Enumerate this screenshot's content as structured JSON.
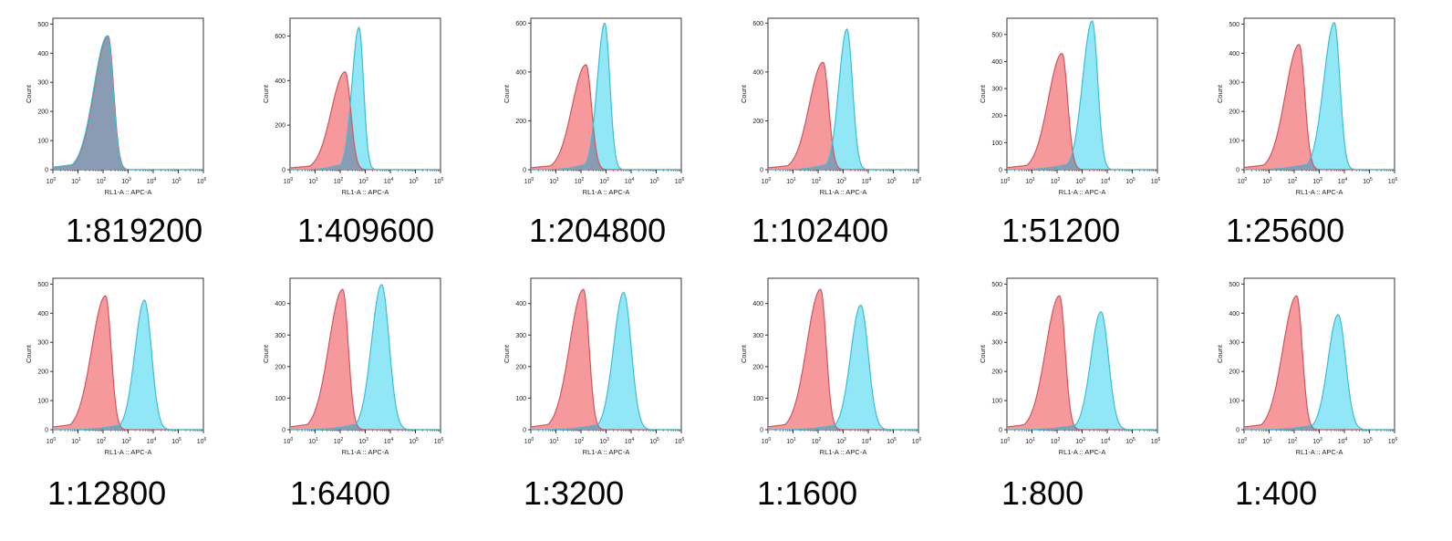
{
  "figure": {
    "xlabel": "RL1-A :: APC-A",
    "ylabel": "Count",
    "x_tick_labels": [
      "10^0",
      "10^1",
      "10^2",
      "10^3",
      "10^4",
      "10^5",
      "10^6"
    ],
    "colors": {
      "control": "#f4878b",
      "control_stroke": "#d9515a",
      "sample": "#7fe3f5",
      "sample_stroke": "#38bfd8",
      "overlap": "#8a96ad"
    }
  },
  "chart_data": [
    {
      "type": "area",
      "caption": "1:819200",
      "xscale": "log",
      "xlim": [
        1,
        1000000
      ],
      "ylim": [
        0,
        520
      ],
      "yticks": [
        0,
        100,
        200,
        300,
        400,
        500
      ],
      "xlabel": "RL1-A :: APC-A",
      "ylabel": "Count",
      "series": [
        {
          "peak_log10": 2.2,
          "height": 460,
          "width_left": 0.55,
          "width_right": 0.22
        },
        {
          "peak_log10": 2.18,
          "height": 460,
          "width_left": 0.55,
          "width_right": 0.22
        }
      ]
    },
    {
      "type": "area",
      "caption": "1:409600",
      "xscale": "log",
      "xlim": [
        1,
        1000000
      ],
      "ylim": [
        0,
        680
      ],
      "yticks": [
        0,
        200,
        400,
        600
      ],
      "xlabel": "RL1-A :: APC-A",
      "ylabel": "Count",
      "series": [
        {
          "peak_log10": 2.2,
          "height": 440,
          "width_left": 0.55,
          "width_right": 0.22
        },
        {
          "peak_log10": 2.75,
          "height": 640,
          "width_left": 0.28,
          "width_right": 0.18
        }
      ]
    },
    {
      "type": "area",
      "caption": "1:204800",
      "xscale": "log",
      "xlim": [
        1,
        1000000
      ],
      "ylim": [
        0,
        620
      ],
      "yticks": [
        0,
        200,
        400,
        600
      ],
      "xlabel": "RL1-A :: APC-A",
      "ylabel": "Count",
      "series": [
        {
          "peak_log10": 2.2,
          "height": 430,
          "width_left": 0.55,
          "width_right": 0.22
        },
        {
          "peak_log10": 2.95,
          "height": 600,
          "width_left": 0.3,
          "width_right": 0.2
        }
      ]
    },
    {
      "type": "area",
      "caption": "1:102400",
      "xscale": "log",
      "xlim": [
        1,
        1000000
      ],
      "ylim": [
        0,
        620
      ],
      "yticks": [
        0,
        200,
        400,
        600
      ],
      "xlabel": "RL1-A :: APC-A",
      "ylabel": "Count",
      "series": [
        {
          "peak_log10": 2.2,
          "height": 440,
          "width_left": 0.55,
          "width_right": 0.22
        },
        {
          "peak_log10": 3.15,
          "height": 575,
          "width_left": 0.32,
          "width_right": 0.22
        }
      ]
    },
    {
      "type": "area",
      "caption": "1:51200",
      "xscale": "log",
      "xlim": [
        1,
        1000000
      ],
      "ylim": [
        0,
        560
      ],
      "yticks": [
        0,
        100,
        200,
        300,
        400,
        500
      ],
      "xlabel": "RL1-A :: APC-A",
      "ylabel": "Count",
      "series": [
        {
          "peak_log10": 2.2,
          "height": 430,
          "width_left": 0.55,
          "width_right": 0.22
        },
        {
          "peak_log10": 3.4,
          "height": 550,
          "width_left": 0.38,
          "width_right": 0.22
        }
      ]
    },
    {
      "type": "area",
      "caption": "1:25600",
      "xscale": "log",
      "xlim": [
        1,
        1000000
      ],
      "ylim": [
        0,
        520
      ],
      "yticks": [
        0,
        100,
        200,
        300,
        400,
        500
      ],
      "xlabel": "RL1-A :: APC-A",
      "ylabel": "Count",
      "series": [
        {
          "peak_log10": 2.2,
          "height": 430,
          "width_left": 0.55,
          "width_right": 0.22
        },
        {
          "peak_log10": 3.6,
          "height": 505,
          "width_left": 0.42,
          "width_right": 0.22
        }
      ]
    },
    {
      "type": "area",
      "caption": "1:12800",
      "xscale": "log",
      "xlim": [
        1,
        1000000
      ],
      "ylim": [
        0,
        520
      ],
      "yticks": [
        0,
        100,
        200,
        300,
        400,
        500
      ],
      "xlabel": "RL1-A :: APC-A",
      "ylabel": "Count",
      "series": [
        {
          "peak_log10": 2.1,
          "height": 460,
          "width_left": 0.55,
          "width_right": 0.22
        },
        {
          "peak_log10": 3.65,
          "height": 445,
          "width_left": 0.38,
          "width_right": 0.28
        }
      ]
    },
    {
      "type": "area",
      "caption": "1:6400",
      "xscale": "log",
      "xlim": [
        1,
        1000000
      ],
      "ylim": [
        0,
        480
      ],
      "yticks": [
        0,
        100,
        200,
        300,
        400
      ],
      "xlabel": "RL1-A :: APC-A",
      "ylabel": "Count",
      "series": [
        {
          "peak_log10": 2.1,
          "height": 445,
          "width_left": 0.55,
          "width_right": 0.22
        },
        {
          "peak_log10": 3.65,
          "height": 460,
          "width_left": 0.4,
          "width_right": 0.3
        }
      ]
    },
    {
      "type": "area",
      "caption": "1:3200",
      "xscale": "log",
      "xlim": [
        1,
        1000000
      ],
      "ylim": [
        0,
        480
      ],
      "yticks": [
        0,
        100,
        200,
        300,
        400
      ],
      "xlabel": "RL1-A :: APC-A",
      "ylabel": "Count",
      "series": [
        {
          "peak_log10": 2.1,
          "height": 445,
          "width_left": 0.55,
          "width_right": 0.22
        },
        {
          "peak_log10": 3.7,
          "height": 435,
          "width_left": 0.4,
          "width_right": 0.3
        }
      ]
    },
    {
      "type": "area",
      "caption": "1:1600",
      "xscale": "log",
      "xlim": [
        1,
        1000000
      ],
      "ylim": [
        0,
        480
      ],
      "yticks": [
        0,
        100,
        200,
        300,
        400
      ],
      "xlabel": "RL1-A :: APC-A",
      "ylabel": "Count",
      "series": [
        {
          "peak_log10": 2.1,
          "height": 445,
          "width_left": 0.55,
          "width_right": 0.22
        },
        {
          "peak_log10": 3.7,
          "height": 395,
          "width_left": 0.4,
          "width_right": 0.3
        }
      ]
    },
    {
      "type": "area",
      "caption": "1:800",
      "xscale": "log",
      "xlim": [
        1,
        1000000
      ],
      "ylim": [
        0,
        520
      ],
      "yticks": [
        0,
        100,
        200,
        300,
        400,
        500
      ],
      "xlabel": "RL1-A :: APC-A",
      "ylabel": "Count",
      "series": [
        {
          "peak_log10": 2.1,
          "height": 460,
          "width_left": 0.55,
          "width_right": 0.22
        },
        {
          "peak_log10": 3.75,
          "height": 405,
          "width_left": 0.4,
          "width_right": 0.3
        }
      ]
    },
    {
      "type": "area",
      "caption": "1:400",
      "xscale": "log",
      "xlim": [
        1,
        1000000
      ],
      "ylim": [
        0,
        520
      ],
      "yticks": [
        0,
        100,
        200,
        300,
        400,
        500
      ],
      "xlabel": "RL1-A :: APC-A",
      "ylabel": "Count",
      "series": [
        {
          "peak_log10": 2.1,
          "height": 460,
          "width_left": 0.55,
          "width_right": 0.22
        },
        {
          "peak_log10": 3.75,
          "height": 395,
          "width_left": 0.4,
          "width_right": 0.3
        }
      ]
    }
  ]
}
